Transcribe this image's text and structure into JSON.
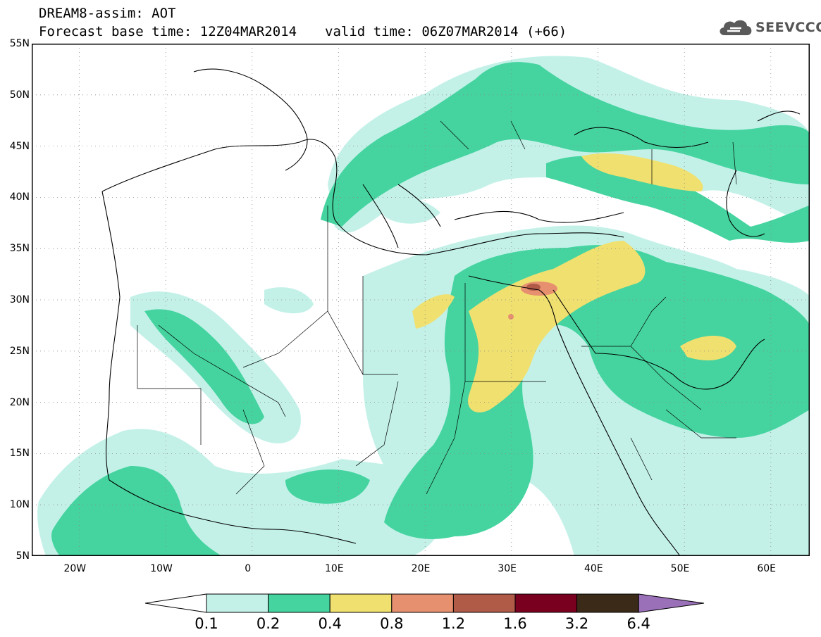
{
  "title": {
    "line1": "DREAM8-assim: AOT",
    "base_time": "Forecast base time: 12Z04MAR2014",
    "valid_time": "valid time: 06Z07MAR2014 (+66)"
  },
  "logo": {
    "text": "SEEVCCC",
    "icon": "cloud-icon"
  },
  "axes": {
    "y_ticks": [
      "55N",
      "50N",
      "45N",
      "40N",
      "35N",
      "30N",
      "25N",
      "20N",
      "15N",
      "10N",
      "5N"
    ],
    "x_ticks": [
      "20W",
      "10W",
      "0",
      "10E",
      "20E",
      "30E",
      "40E",
      "50E",
      "60E"
    ],
    "lat_range": [
      5,
      55
    ],
    "lon_range": [
      -25,
      65
    ],
    "grid": "dotted"
  },
  "colorbar": {
    "labels": [
      "0.1",
      "0.2",
      "0.4",
      "0.8",
      "1.2",
      "1.6",
      "3.2",
      "6.4"
    ],
    "colors": [
      "#ffffff",
      "#c3f1e8",
      "#45d4a0",
      "#f0e070",
      "#e69070",
      "#b05a48",
      "#7a0020",
      "#3b2a18",
      "#9a70b8"
    ]
  }
}
